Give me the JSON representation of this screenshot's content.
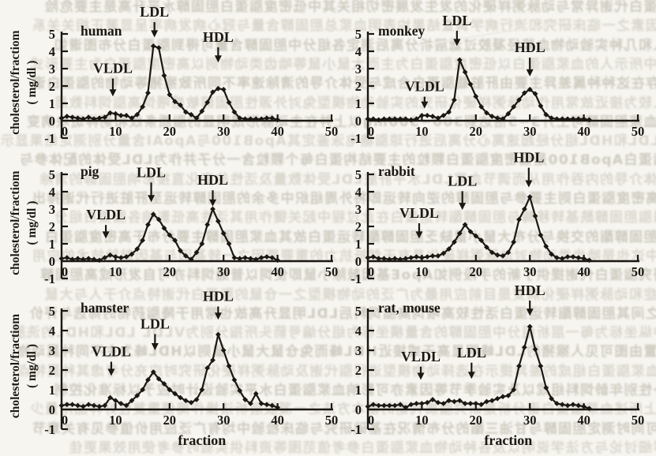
{
  "figure": {
    "ink_color": "#1b1713",
    "paper_color": "#f7f5f0",
    "y_axis_label_line1": "cholesterol/fractiom",
    "y_axis_label_line2": "( mg/dl )",
    "x_axis_label": "fraction",
    "lipoprotein_labels": [
      "VLDL",
      "LDL",
      "HDL"
    ],
    "x_ticks": [
      0,
      10,
      20,
      30,
      40,
      50
    ],
    "y_ticks": [
      5,
      4,
      3,
      2,
      1,
      0,
      -1
    ]
  },
  "chart_data": [
    {
      "type": "line",
      "title": "human",
      "xlabel": "",
      "ylabel": "cholesterol/fractiom ( mg/dl )",
      "xlim": [
        0,
        50
      ],
      "ylim": [
        -1,
        5
      ],
      "x_ticks": [
        0,
        10,
        20,
        30,
        40,
        50
      ],
      "y_ticks": [
        5,
        4,
        3,
        2,
        1,
        0,
        -1
      ],
      "x_start": 0,
      "x_step": 1,
      "values": [
        0.15,
        0.25,
        0.2,
        0.15,
        0.1,
        0.2,
        0.1,
        0.15,
        0.2,
        0.45,
        0.4,
        0.3,
        0.3,
        0.15,
        0.35,
        0.8,
        1.6,
        4.3,
        4.2,
        2.6,
        1.5,
        1.1,
        0.9,
        0.5,
        0.35,
        0.15,
        0.55,
        1.05,
        1.65,
        1.85,
        1.8,
        1.05,
        0.5,
        0.15,
        0.1,
        0.1,
        0.1,
        0.1,
        0.15,
        0.15,
        0.05
      ],
      "annotations": [
        {
          "label": "VLDL",
          "x": 9.5,
          "tip_y": 1.4,
          "label_y": 2.75
        },
        {
          "label": "LDL",
          "x": 17.2,
          "tip_y": 4.8,
          "label_y": 6.0
        },
        {
          "label": "HDL",
          "x": 29.0,
          "tip_y": 3.35,
          "label_y": 4.55
        }
      ]
    },
    {
      "type": "line",
      "title": "monkey",
      "xlabel": "",
      "ylabel": "",
      "xlim": [
        0,
        50
      ],
      "ylim": [
        -1,
        5
      ],
      "x_ticks": [
        0,
        10,
        20,
        30,
        40,
        50
      ],
      "y_ticks": [
        5,
        4,
        3,
        2,
        1,
        0,
        -1
      ],
      "x_start": 0,
      "x_step": 1,
      "values": [
        0.1,
        0.1,
        0.05,
        0.1,
        0.1,
        0.1,
        0.1,
        0.1,
        0.05,
        0.1,
        0.3,
        0.3,
        0.25,
        0.15,
        0.3,
        0.5,
        1.2,
        3.5,
        2.8,
        2.1,
        1.4,
        0.8,
        0.45,
        0.25,
        0.15,
        0.1,
        0.4,
        0.8,
        1.2,
        1.6,
        1.8,
        1.55,
        0.85,
        0.35,
        0.15,
        0.1,
        0.1,
        0.1,
        0.1,
        0.1,
        0.1,
        0.05
      ],
      "annotations": [
        {
          "label": "VLDL",
          "x": 10.5,
          "tip_y": 0.7,
          "label_y": 1.7
        },
        {
          "label": "LDL",
          "x": 16.5,
          "tip_y": 4.3,
          "label_y": 5.5
        },
        {
          "label": "HDL",
          "x": 30.0,
          "tip_y": 2.55,
          "label_y": 3.95
        }
      ]
    },
    {
      "type": "line",
      "title": "pig",
      "xlabel": "",
      "ylabel": "cholesterol/fractiom ( mg/dl )",
      "xlim": [
        0,
        50
      ],
      "ylim": [
        -1,
        5
      ],
      "x_ticks": [
        0,
        10,
        20,
        30,
        40,
        50
      ],
      "y_ticks": [
        5,
        4,
        3,
        2,
        1,
        0,
        -1
      ],
      "x_start": 0,
      "x_step": 1,
      "values": [
        0.15,
        0.2,
        0.1,
        0.15,
        0.1,
        0.15,
        0.1,
        0.05,
        0.2,
        0.35,
        0.25,
        0.2,
        0.25,
        0.4,
        0.7,
        1.2,
        2.1,
        2.7,
        2.4,
        1.9,
        1.5,
        1.2,
        0.6,
        0.3,
        0.1,
        0.5,
        1.0,
        2.1,
        3.0,
        2.3,
        1.6,
        1.0,
        0.2,
        0.15,
        0.2,
        0.15,
        0.1,
        0.2,
        0.25,
        0.2,
        0.05
      ],
      "annotations": [
        {
          "label": "VLDL",
          "x": 8.2,
          "tip_y": 1.3,
          "label_y": 2.4
        },
        {
          "label": "LDL",
          "x": 16.6,
          "tip_y": 3.4,
          "label_y": 4.85
        },
        {
          "label": "HDL",
          "x": 28.0,
          "tip_y": 3.15,
          "label_y": 4.4
        }
      ]
    },
    {
      "type": "line",
      "title": "rabbit",
      "xlabel": "",
      "ylabel": "",
      "xlim": [
        0,
        50
      ],
      "ylim": [
        -1,
        5
      ],
      "x_ticks": [
        0,
        10,
        20,
        30,
        40,
        50
      ],
      "y_ticks": [
        5,
        4,
        3,
        2,
        1,
        0,
        -1
      ],
      "x_start": 0,
      "x_step": 1,
      "values": [
        0.2,
        0.25,
        0.15,
        0.15,
        0.1,
        0.15,
        0.1,
        0.15,
        0.2,
        0.25,
        0.2,
        0.25,
        0.3,
        0.3,
        0.45,
        0.7,
        1.1,
        1.6,
        2.1,
        1.7,
        1.45,
        1.2,
        0.8,
        0.5,
        0.35,
        0.3,
        0.5,
        1.1,
        2.4,
        3.0,
        3.7,
        2.6,
        1.5,
        0.85,
        0.4,
        0.2,
        0.15,
        0.25,
        0.25,
        0.2,
        0.15,
        0.05
      ],
      "annotations": [
        {
          "label": "VLDL",
          "x": 9.5,
          "tip_y": 1.3,
          "label_y": 2.5
        },
        {
          "label": "LDL",
          "x": 17.5,
          "tip_y": 2.95,
          "label_y": 4.35
        },
        {
          "label": "HDL",
          "x": 29.8,
          "tip_y": 4.25,
          "label_y": 5.7
        }
      ]
    },
    {
      "type": "line",
      "title": "hamster",
      "xlabel": "fraction",
      "ylabel": "cholesterol/fractiom ( mg/dl )",
      "xlim": [
        0,
        50
      ],
      "ylim": [
        -1,
        5
      ],
      "x_ticks": [
        0,
        10,
        20,
        30,
        40,
        50
      ],
      "y_ticks": [
        5,
        4,
        3,
        2,
        1,
        0,
        -1
      ],
      "x_start": 0,
      "x_step": 1,
      "values": [
        0.2,
        0.25,
        0.25,
        0.2,
        0.15,
        0.25,
        0.2,
        0.15,
        0.2,
        0.6,
        0.45,
        0.3,
        0.2,
        0.45,
        0.7,
        1.0,
        1.5,
        1.9,
        1.55,
        1.3,
        1.0,
        0.8,
        0.6,
        0.45,
        0.35,
        0.5,
        1.0,
        2.1,
        2.5,
        3.8,
        3.0,
        2.2,
        1.5,
        0.95,
        0.5,
        0.3,
        0.8,
        0.3,
        0.25,
        0.2,
        0.1
      ],
      "annotations": [
        {
          "label": "VLDL",
          "x": 9.2,
          "tip_y": 1.7,
          "label_y": 2.7
        },
        {
          "label": "LDL",
          "x": 17.3,
          "tip_y": 3.0,
          "label_y": 4.1
        },
        {
          "label": "HDL",
          "x": 29.0,
          "tip_y": 4.55,
          "label_y": 5.5
        }
      ]
    },
    {
      "type": "line",
      "title": "rat, mouse",
      "xlabel": "fraction",
      "ylabel": "",
      "xlim": [
        0,
        50
      ],
      "ylim": [
        -1,
        5
      ],
      "x_ticks": [
        0,
        10,
        20,
        30,
        40,
        50
      ],
      "y_ticks": [
        5,
        4,
        3,
        2,
        1,
        0,
        -1
      ],
      "x_start": 0,
      "x_step": 1,
      "values": [
        0.15,
        0.25,
        0.2,
        0.2,
        0.2,
        0.2,
        0.25,
        0.1,
        0.25,
        0.3,
        0.3,
        0.35,
        0.5,
        0.35,
        0.3,
        0.45,
        0.4,
        0.45,
        0.3,
        0.3,
        0.3,
        0.25,
        0.4,
        0.45,
        0.55,
        0.65,
        0.7,
        1.0,
        2.2,
        3.15,
        4.2,
        3.05,
        2.2,
        1.1,
        0.55,
        0.3,
        0.25,
        0.2,
        0.25,
        0.2,
        0.15,
        0.05
      ],
      "annotations": [
        {
          "label": "VLDL",
          "x": 9.8,
          "tip_y": 1.5,
          "label_y": 2.45
        },
        {
          "label": "LDL",
          "x": 19.2,
          "tip_y": 1.55,
          "label_y": 2.65
        },
        {
          "label": "HDL",
          "x": 30.0,
          "tip_y": 4.75,
          "label_y": 5.8
        }
      ]
    }
  ],
  "background_bleedthrough": {
    "description": "blurred mirrored Chinese text showing through from the reverse side of the scanned page (illegible)",
    "lines": [
      "脂蛋白代谢异常与动脉粥样硬化的发生发展密切相关其中低密度脂蛋白胆固醇水平升高是主要危险",
      "因素之一临床研究和流行病学调查结果均表明血浆总胆固醇含量与冠心病发病率呈显著正相关关系",
      "将人和几种实验动物血浆经凝胶过滤层析分离后测定各组分中胆固醇含量可得到脂蛋白分布图谱如",
      "图中所示人的血浆脂蛋白以低密度脂蛋白为主而大鼠小鼠等啮齿类动物则以高密度脂蛋白为主要形式",
      "存在这种种属差异主要由肝脏载脂蛋白合成与受体介导的清除速率不同所致猴猪等动物的脂蛋白谱",
      "与人较为接近故常用作动脉粥样硬化研究的实验动物模型兔对外源性胆固醇敏感喂饲高脂饲料数周",
      "后血浆胆固醇可上升3~5倍达到300~500mg以上并在主动脉形成明显的脂质条纹和粥样斑块病变",
      "LDL和HDL组分经超速离心分离后进行琼脂糖电泳鉴定其ApoB100与ApoAI含量分别测定结果显示",
      "载脂蛋白ApoB100是低密度脂蛋白颗粒的主要结构蛋白每个颗粒含一分子并作为LDL受体的配体参与",
      "受体介导的内吞作用从而调节血浆LDL水平肝脏LDL受体数量及活性的变化直接影响胆固醇的清除",
      "高密度脂蛋白则主要参与胆固醇的逆向转运即将外周组织中多余的胆固醇转运至肝脏进行代谢排出",
      "卵磷脂胆固醇酰基转移酶与胆固醇酯转运蛋白在此过程中起关键作用其活性高低影响各脂蛋白组分",
      "间胆固醇酯的交换与分布大鼠小鼠缺乏胆固醇酯转运蛋白故其血浆胆固醇主要分布于高密度脂蛋白",
      "中这也是啮齿类动物对动脉粥样硬化具有天然抵抗力的重要原因之一转基因与基因敲除技术的应用",
      "为研究脂蛋白代谢提供了新的手段例如ApoE基因敲除小鼠即使饲以普通饲料亦可自发形成高胆固醇",
      "血症和动脉粥样硬化病变是目前应用最为广泛的动物模型之一仓鼠的脂蛋白代谢特点介于人与大鼠",
      "之间其胆固醇酯转运蛋白活性较高喂饲高脂饲料后LDL明显升高故也常用于降脂药物的筛选与评价",
      "图中纵坐标为每一层析组分中胆固醇的含量横坐标为组分编号箭头所指分别为VLDL LDL和HDL的洗脱",
      "位置由图可见人猴猪的LDL峰明显高于或接近HDL峰而兔仓鼠大鼠小鼠则以HDL峰为主不同种属动物",
      "血浆脂蛋白组成的差异提示在选择动物模型进行脂代谢及动脉粥样硬化研究时应充分考虑其种属特点",
      "此外性别年龄饲料组成以及实验季节等因素亦可影响血浆脂蛋白水平实验设计时应予以标准化控制",
      "综上所述血浆脂蛋白谱分析是研究脂质代谢的基本方法之一凝胶层析法操作简便重复性好样品用量少",
      "可同时测定胆固醇与甘油三酯的分布情况在基础研究与临床检验中均有广泛应用价值参见有关章节",
      "的详细讨论与方法学说明以及各种动物血浆脂蛋白参考值范围等资料供实验时参考使用效果更佳"
    ]
  }
}
